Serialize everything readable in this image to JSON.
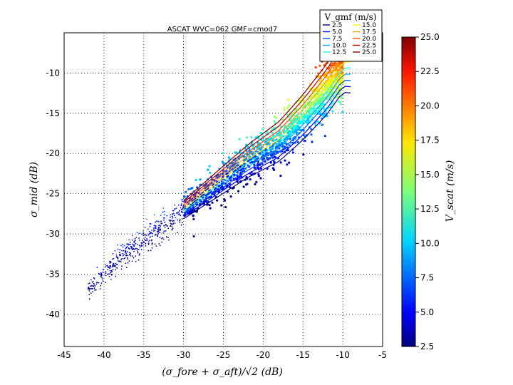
{
  "chart_data": {
    "type": "scatter",
    "title": "ASCAT WVC=062 GMF=cmod7",
    "xlabel": "(σ_fore + σ_aft)/√2  (dB)",
    "ylabel": "σ_mid  (dB)",
    "xlim": [
      -45,
      -5
    ],
    "ylim": [
      -44,
      -5
    ],
    "x_ticks": [
      "-45",
      "-40",
      "-35",
      "-30",
      "-25",
      "-20",
      "-15",
      "-10",
      "-5"
    ],
    "y_ticks": [
      "-10",
      "-15",
      "-20",
      "-25",
      "-30",
      "-35",
      "-40"
    ],
    "grid": true,
    "legend_title": "V_gmf (m/s)",
    "legend_position": "top-right",
    "gmf_curves": [
      {
        "name": "2.5",
        "color": "#00007f"
      },
      {
        "name": "5.0",
        "color": "#0000ff"
      },
      {
        "name": "7.5",
        "color": "#0050ff"
      },
      {
        "name": "10.0",
        "color": "#00a4ff"
      },
      {
        "name": "12.5",
        "color": "#19ffde"
      },
      {
        "name": "15.0",
        "color": "#fff200"
      },
      {
        "name": "17.5",
        "color": "#ffa400"
      },
      {
        "name": "20.0",
        "color": "#ff5000"
      },
      {
        "name": "22.5",
        "color": "#c00000"
      },
      {
        "name": "25.0",
        "color": "#7f0000"
      }
    ],
    "scatter_trend": [
      {
        "x": -42,
        "y": -37,
        "v": 3.0
      },
      {
        "x": -38,
        "y": -33,
        "v": 3.5
      },
      {
        "x": -34,
        "y": -30,
        "v": 4.0
      },
      {
        "x": -30,
        "y": -27,
        "v": 4.5
      },
      {
        "x": -26,
        "y": -24,
        "v": 5.5
      },
      {
        "x": -22,
        "y": -21,
        "v": 7.0
      },
      {
        "x": -18,
        "y": -18.5,
        "v": 9.0
      },
      {
        "x": -15,
        "y": -15.5,
        "v": 11.5
      },
      {
        "x": -12,
        "y": -12,
        "v": 15.0
      },
      {
        "x": -10,
        "y": -9,
        "v": 20.0
      }
    ],
    "colorbar": {
      "label": "V_scat (m/s)",
      "min": 2.5,
      "max": 25.0,
      "ticks": [
        "25.0",
        "22.5",
        "20.0",
        "17.5",
        "15.0",
        "12.5",
        "10.0",
        "7.5",
        "5.0",
        "2.5"
      ]
    }
  }
}
